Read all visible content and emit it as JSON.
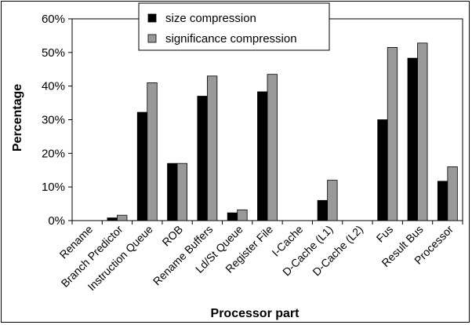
{
  "chart_data": {
    "type": "bar",
    "title": "",
    "xlabel": "Processor part",
    "ylabel": "Percentage",
    "ylim": [
      0,
      60
    ],
    "yticks": [
      0,
      10,
      20,
      30,
      40,
      50,
      60
    ],
    "ytick_labels": [
      "0%",
      "10%",
      "20%",
      "30%",
      "40%",
      "50%",
      "60%"
    ],
    "grid": false,
    "legend_position": "top-center",
    "categories": [
      "Rename",
      "Branch Predictor",
      "Instruction Queue",
      "ROB",
      "Rename Buffers",
      "Ld/St Queue",
      "Register File",
      "I-Cache",
      "D-Cache (L1)",
      "D-Cache (L2)",
      "Fus",
      "Result Bus",
      "Processor"
    ],
    "series": [
      {
        "name": "size compression",
        "color": "#000000",
        "values": [
          0,
          0.8,
          32.2,
          17.0,
          37.0,
          2.3,
          38.3,
          0,
          6.0,
          0,
          30.0,
          48.3,
          11.7
        ]
      },
      {
        "name": "significance compression",
        "color": "#999999",
        "values": [
          0,
          1.6,
          41.0,
          17.0,
          43.0,
          3.2,
          43.5,
          0,
          12.0,
          0,
          51.5,
          52.8,
          16.0
        ]
      }
    ]
  }
}
